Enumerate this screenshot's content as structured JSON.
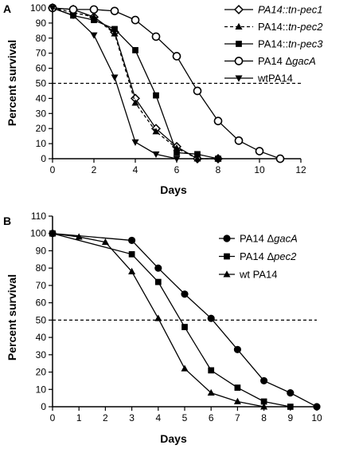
{
  "chart_data": [
    {
      "panel": "A",
      "type": "line",
      "xlabel": "Days",
      "ylabel": "Percent survival",
      "xlim": [
        0,
        12
      ],
      "ylim": [
        0,
        100
      ],
      "xticks": [
        0,
        2,
        4,
        6,
        8,
        10,
        12
      ],
      "yticks": [
        0,
        10,
        20,
        30,
        40,
        50,
        60,
        70,
        80,
        90,
        100
      ],
      "reference_line_y": 50,
      "legend_position": "top-right",
      "series": [
        {
          "name": "PA14::tn-pec1",
          "italic": "all",
          "marker": "diamond-open",
          "dash": "solid",
          "x": [
            0,
            1,
            2,
            3,
            4,
            5,
            6,
            7,
            8
          ],
          "y": [
            100,
            99,
            94,
            84,
            40,
            20,
            8,
            0,
            0
          ]
        },
        {
          "name": "PA14::tn-pec2",
          "italic": "suffix",
          "marker": "triangle-up",
          "dash": "dashed",
          "x": [
            0,
            1,
            2,
            3,
            4,
            5,
            6,
            7,
            8
          ],
          "y": [
            100,
            97,
            94,
            83,
            37,
            18,
            7,
            0,
            0
          ]
        },
        {
          "name": "PA14::tn-pec3",
          "italic": "suffix",
          "marker": "square",
          "dash": "solid",
          "x": [
            0,
            1,
            2,
            3,
            4,
            5,
            6,
            7,
            8
          ],
          "y": [
            100,
            95,
            92,
            86,
            72,
            42,
            4,
            3,
            0
          ]
        },
        {
          "name": "PA14 ΔgacA",
          "italic": "suffix",
          "marker": "circle-open",
          "dash": "solid",
          "x": [
            0,
            1,
            2,
            3,
            4,
            5,
            6,
            7,
            8,
            9,
            10,
            11
          ],
          "y": [
            100,
            99,
            99,
            98,
            92,
            81,
            68,
            45,
            25,
            12,
            5,
            0
          ]
        },
        {
          "name": "wtPA14",
          "italic": "none",
          "marker": "triangle-down",
          "dash": "solid",
          "x": [
            0,
            1,
            2,
            3,
            4,
            5,
            6
          ],
          "y": [
            100,
            95,
            82,
            54,
            11,
            3,
            0
          ]
        }
      ]
    },
    {
      "panel": "B",
      "type": "line",
      "xlabel": "Days",
      "ylabel": "Percent survival",
      "xlim": [
        0,
        10
      ],
      "ylim": [
        0,
        110
      ],
      "xticks": [
        0,
        1,
        2,
        3,
        4,
        5,
        6,
        7,
        8,
        9,
        10
      ],
      "yticks": [
        0,
        10,
        20,
        30,
        40,
        50,
        60,
        70,
        80,
        90,
        100,
        110
      ],
      "reference_line_y": 50,
      "legend_position": "top-right",
      "series": [
        {
          "name": "PA14 ΔgacA",
          "italic": "suffix",
          "marker": "circle",
          "dash": "solid",
          "x": [
            0,
            3,
            4,
            5,
            6,
            7,
            8,
            9,
            10
          ],
          "y": [
            100,
            96,
            80,
            65,
            51,
            33,
            15,
            8,
            0
          ]
        },
        {
          "name": "PA14 Δpec2",
          "italic": "suffix",
          "marker": "square",
          "dash": "solid",
          "x": [
            0,
            3,
            4,
            5,
            6,
            7,
            8,
            9
          ],
          "y": [
            100,
            88,
            72,
            46,
            21,
            11,
            3,
            0
          ]
        },
        {
          "name": "wt PA14",
          "italic": "none",
          "marker": "triangle-up",
          "dash": "solid",
          "x": [
            0,
            1,
            2,
            3,
            4,
            5,
            6,
            7,
            8
          ],
          "y": [
            100,
            98,
            95,
            78,
            51,
            22,
            8,
            3,
            0
          ]
        }
      ]
    }
  ]
}
